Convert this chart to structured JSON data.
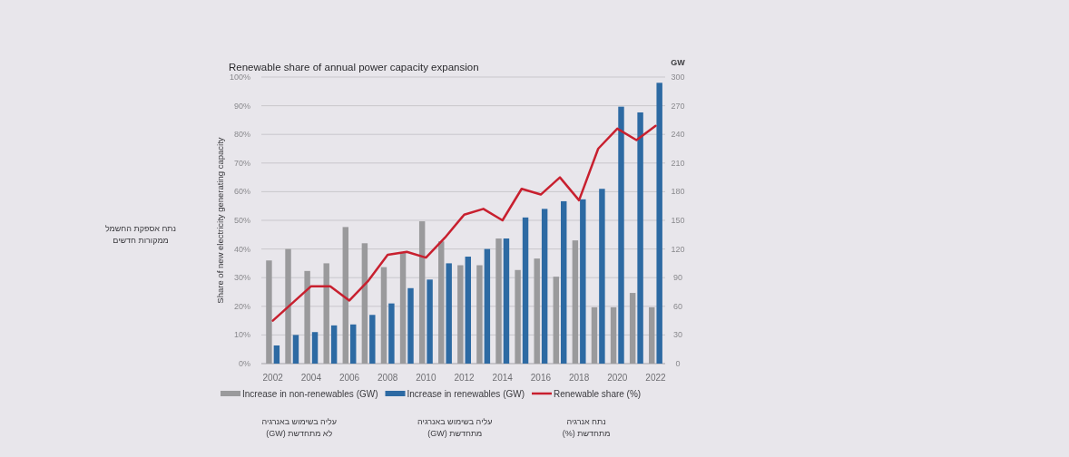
{
  "chart_data": {
    "type": "bar",
    "title": "Renewable share of annual power capacity expansion",
    "ylabel": "Share of new electricity generating capacity",
    "y2label": "GW",
    "x": [
      2002,
      2003,
      2004,
      2005,
      2006,
      2007,
      2008,
      2009,
      2010,
      2011,
      2012,
      2013,
      2014,
      2015,
      2016,
      2017,
      2018,
      2019,
      2020,
      2021,
      2022
    ],
    "series": [
      {
        "name": "Increase in non-renewables (GW)",
        "axis": "y2",
        "color": "#9a9a9c",
        "values": [
          108,
          120,
          97,
          105,
          143,
          126,
          101,
          116,
          149,
          128,
          103,
          103,
          131,
          98,
          110,
          91,
          129,
          59,
          59,
          74,
          59
        ]
      },
      {
        "name": "Increase in renewables (GW)",
        "axis": "y2",
        "color": "#2d6aa3",
        "values": [
          19,
          30,
          33,
          40,
          41,
          51,
          63,
          79,
          88,
          105,
          112,
          120,
          131,
          153,
          162,
          170,
          172,
          183,
          269,
          263,
          294
        ]
      },
      {
        "name": "Renewable share (%)",
        "type": "line",
        "color": "#c8202f",
        "values": [
          15,
          21,
          27,
          27,
          22,
          29,
          38,
          39,
          37,
          44,
          52,
          54,
          50,
          61,
          59,
          65,
          57,
          75,
          82,
          78,
          83
        ]
      }
    ],
    "xlim": [
      2001.4,
      2022.5
    ],
    "xticks": [
      2002,
      2004,
      2006,
      2008,
      2010,
      2012,
      2014,
      2016,
      2018,
      2020,
      2022
    ],
    "ylim": [
      0,
      100
    ],
    "yticks": [
      {
        "value": 0,
        "label": "0%"
      },
      {
        "value": 10,
        "label": "10%"
      },
      {
        "value": 20,
        "label": "20%"
      },
      {
        "value": 30,
        "label": "30%"
      },
      {
        "value": 40,
        "label": "40%"
      },
      {
        "value": 50,
        "label": "50%"
      },
      {
        "value": 60,
        "label": "60%"
      },
      {
        "value": 70,
        "label": "70%"
      },
      {
        "value": 80,
        "label": "80%"
      },
      {
        "value": 90,
        "label": "90%"
      },
      {
        "value": 100,
        "label": "100%"
      }
    ],
    "y2lim": [
      0,
      300
    ],
    "y2ticks": [
      0,
      30,
      60,
      90,
      120,
      150,
      180,
      210,
      240,
      270,
      300
    ],
    "grid": "y",
    "legend": "bottom",
    "marker": "none",
    "line_style": "solid",
    "annotations": [
      "נתח אספקת החשמל\nממקורות חדשים",
      "עליה בשימוש באנרגיה\nלא מתחדשת (GW)",
      "עליה בשימוש באנרגיה\nמתחדשת (GW)",
      "נתח אנרגיה\nמתחדשת (%)"
    ]
  }
}
